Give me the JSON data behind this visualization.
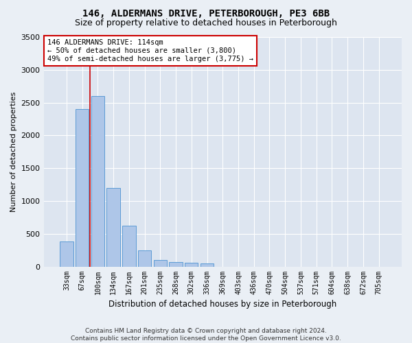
{
  "title": "146, ALDERMANS DRIVE, PETERBOROUGH, PE3 6BB",
  "subtitle": "Size of property relative to detached houses in Peterborough",
  "xlabel": "Distribution of detached houses by size in Peterborough",
  "ylabel": "Number of detached properties",
  "footer_line1": "Contains HM Land Registry data © Crown copyright and database right 2024.",
  "footer_line2": "Contains public sector information licensed under the Open Government Licence v3.0.",
  "bar_labels": [
    "33sqm",
    "67sqm",
    "100sqm",
    "134sqm",
    "167sqm",
    "201sqm",
    "235sqm",
    "268sqm",
    "302sqm",
    "336sqm",
    "369sqm",
    "403sqm",
    "436sqm",
    "470sqm",
    "504sqm",
    "537sqm",
    "571sqm",
    "604sqm",
    "638sqm",
    "672sqm",
    "705sqm"
  ],
  "bar_values": [
    380,
    2400,
    2600,
    1200,
    620,
    250,
    100,
    70,
    60,
    50,
    0,
    0,
    0,
    0,
    0,
    0,
    0,
    0,
    0,
    0,
    0
  ],
  "bar_color": "#aec6e8",
  "bar_edge_color": "#5b9bd5",
  "ylim": [
    0,
    3500
  ],
  "yticks": [
    0,
    500,
    1000,
    1500,
    2000,
    2500,
    3000,
    3500
  ],
  "annotation_title": "146 ALDERMANS DRIVE: 114sqm",
  "annotation_line1": "← 50% of detached houses are smaller (3,800)",
  "annotation_line2": "49% of semi-detached houses are larger (3,775) →",
  "red_line_index": 1,
  "background_color": "#eaeff5",
  "plot_bg_color": "#dde5f0",
  "grid_color": "#ffffff",
  "annotation_box_color": "#ffffff",
  "annotation_box_edge": "#cc0000",
  "red_line_color": "#cc0000",
  "title_fontsize": 10,
  "subtitle_fontsize": 9
}
